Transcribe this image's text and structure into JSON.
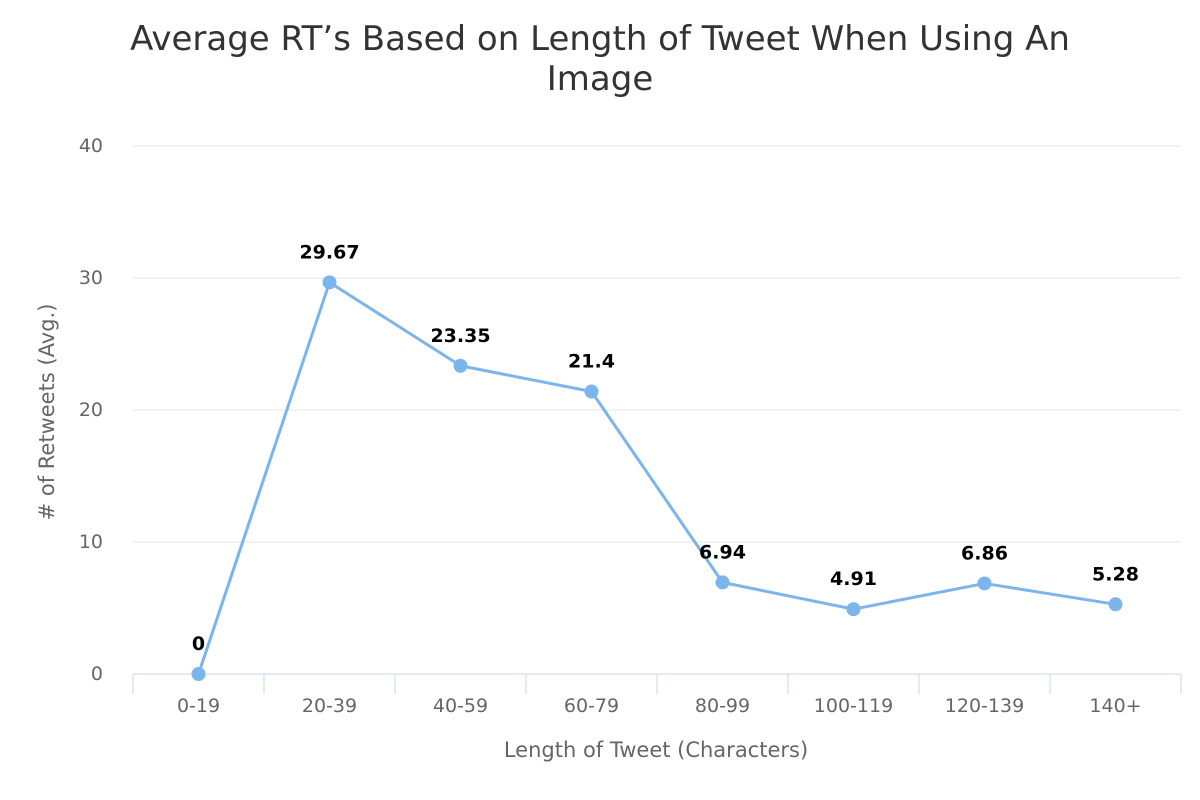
{
  "chart_data": {
    "type": "line",
    "title": "Average RT’s Based on Length of Tweet When Using An Image",
    "title_lines": [
      "Average RT’s Based on Length of Tweet When Using An",
      "Image"
    ],
    "xlabel": "Length of Tweet (Characters)",
    "ylabel": "# of Retweets (Avg.)",
    "categories": [
      "0-19",
      "20-39",
      "40-59",
      "60-79",
      "80-99",
      "100-119",
      "120-139",
      "140+"
    ],
    "series": [
      {
        "values": [
          0,
          29.67,
          23.35,
          21.4,
          6.94,
          4.91,
          6.86,
          5.28
        ]
      }
    ],
    "data_labels": [
      "0",
      "29.67",
      "23.35",
      "21.4",
      "6.94",
      "4.91",
      "6.86",
      "5.28"
    ],
    "ylim": [
      0,
      40
    ],
    "yticks": [
      0,
      10,
      20,
      30,
      40
    ],
    "ytick_labels": [
      "0",
      "10",
      "20",
      "30",
      "40"
    ],
    "grid": true,
    "legend": "none",
    "colors": {
      "series": "#7cb5ec",
      "grid": "#e6e6e6",
      "axis_line": "#ccd6eb",
      "text": "#666666",
      "title": "#333333",
      "data_label": "#000000"
    }
  }
}
